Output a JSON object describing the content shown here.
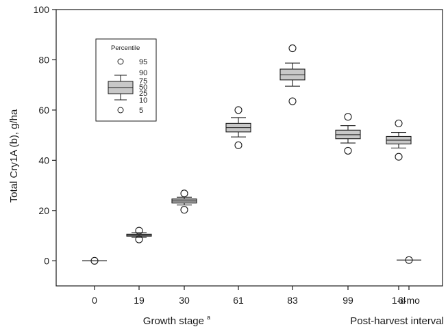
{
  "chart_data": {
    "type": "box",
    "ylabel": "Total Cry1A (b), g/ha",
    "xlabel_growth": "Growth stage",
    "xlabel_growth_superscript": "a",
    "xlabel_post": "Post-harvest interval",
    "ylim": [
      -10,
      100
    ],
    "yticks": [
      0,
      20,
      40,
      60,
      80,
      100
    ],
    "categories": [
      "0",
      "19",
      "30",
      "61",
      "83",
      "99",
      "1-d",
      "6-mo"
    ],
    "boxes": [
      {
        "p5": 0,
        "p10": 0,
        "p25": 0,
        "p50": 0,
        "p75": 0,
        "p90": 0,
        "p95": 0,
        "outliers": [
          0
        ]
      },
      {
        "p5": 8.5,
        "p10": 9.3,
        "p25": 9.8,
        "p50": 10.2,
        "p75": 10.6,
        "p90": 11.2,
        "p95": 12,
        "outliers": [
          8.5,
          12
        ]
      },
      {
        "p5": 20.3,
        "p10": 22.2,
        "p25": 23,
        "p50": 23.8,
        "p75": 24.6,
        "p90": 25.3,
        "p95": 26.8,
        "outliers": [
          20.3,
          26.8
        ]
      },
      {
        "p5": 46,
        "p10": 49.3,
        "p25": 51.3,
        "p50": 53,
        "p75": 54.7,
        "p90": 57,
        "p95": 60,
        "outliers": [
          46,
          60
        ]
      },
      {
        "p5": 63.5,
        "p10": 69.5,
        "p25": 72,
        "p50": 74,
        "p75": 76.3,
        "p90": 78.7,
        "p95": 84.6,
        "outliers": [
          63.5,
          84.6
        ]
      },
      {
        "p5": 43.8,
        "p10": 46.9,
        "p25": 48.6,
        "p50": 50.2,
        "p75": 52,
        "p90": 53.8,
        "p95": 57.3,
        "outliers": [
          43.8,
          57.3
        ]
      },
      {
        "p5": 41.4,
        "p10": 44.9,
        "p25": 46.5,
        "p50": 48,
        "p75": 49.5,
        "p90": 51.1,
        "p95": 54.7,
        "outliers": [
          41.4,
          54.7
        ]
      },
      {
        "p5": 0.3,
        "p10": 0.3,
        "p25": 0.3,
        "p50": 0.3,
        "p75": 0.3,
        "p90": 0.3,
        "p95": 0.3,
        "outliers": [
          0.3
        ]
      }
    ],
    "legend": {
      "title": "Percentile",
      "labels": [
        "95",
        "90",
        "75",
        "50",
        "25",
        "10",
        "5"
      ]
    },
    "colors": {
      "box_fill": "#c8c8c8",
      "stroke": "#1a1a1a"
    }
  }
}
